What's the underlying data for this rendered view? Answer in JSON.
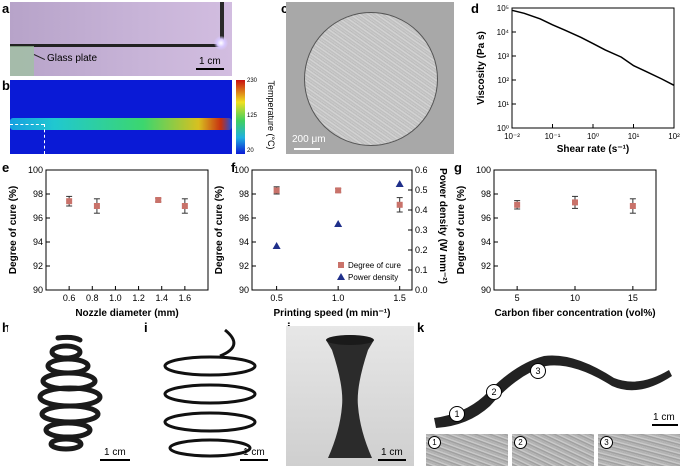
{
  "panels": {
    "a": {
      "letter": "a",
      "glass_label": "Glass plate",
      "scale": "1 cm"
    },
    "b": {
      "letter": "b",
      "cbar_label": "Temperature (°C)",
      "cbar_ticks": [
        "230",
        "125",
        "20"
      ]
    },
    "c": {
      "letter": "c",
      "scale": "200 μm"
    },
    "d": {
      "letter": "d"
    },
    "e": {
      "letter": "e"
    },
    "f": {
      "letter": "f"
    },
    "g": {
      "letter": "g"
    },
    "h": {
      "letter": "h",
      "scale": "1 cm"
    },
    "i": {
      "letter": "i",
      "scale": "1 cm"
    },
    "j": {
      "letter": "j",
      "scale": "1 cm"
    },
    "k": {
      "letter": "k",
      "scale": "1 cm",
      "markers": [
        "1",
        "2",
        "3"
      ]
    }
  },
  "chart_data": [
    {
      "id": "d",
      "type": "line",
      "xlabel": "Shear rate (s⁻¹)",
      "ylabel": "Viscosity (Pa s)",
      "xscale": "log",
      "yscale": "log",
      "xlim": [
        0.01,
        100
      ],
      "ylim": [
        1,
        100000
      ],
      "xticks": [
        0.01,
        0.1,
        1,
        10,
        100
      ],
      "xtick_labels": [
        "10⁻²",
        "10⁻¹",
        "10⁰",
        "10¹",
        "10²"
      ],
      "yticks": [
        1,
        10,
        100,
        1000,
        10000,
        100000
      ],
      "ytick_labels": [
        "10⁰",
        "10¹",
        "10²",
        "10³",
        "10⁴",
        "10⁵"
      ],
      "x": [
        0.01,
        0.02,
        0.05,
        0.1,
        0.2,
        0.5,
        1,
        2,
        5,
        10,
        20,
        50,
        100
      ],
      "y": [
        80000,
        60000,
        35000,
        20000,
        12000,
        6000,
        3300,
        1800,
        900,
        400,
        230,
        110,
        60
      ]
    },
    {
      "id": "e",
      "type": "scatter",
      "xlabel": "Nozzle diameter (mm)",
      "ylabel": "Degree of cure (%)",
      "xlim": [
        0.4,
        1.8
      ],
      "ylim": [
        90,
        100
      ],
      "xticks": [
        0.6,
        0.8,
        1.0,
        1.2,
        1.4,
        1.6
      ],
      "xtick_labels": [
        "0.6",
        "0.8",
        "1.0",
        "1.2",
        "1.4",
        "1.6"
      ],
      "yticks": [
        90,
        92,
        94,
        96,
        98,
        100
      ],
      "ytick_labels": [
        "90",
        "92",
        "94",
        "96",
        "98",
        "100"
      ],
      "x": [
        0.6,
        0.84,
        1.37,
        1.6
      ],
      "y": [
        97.4,
        97.0,
        97.5,
        97.0
      ],
      "err": [
        0.4,
        0.6,
        0.15,
        0.6
      ]
    },
    {
      "id": "f",
      "type": "scatter",
      "xlabel": "Printing speed (m min⁻¹)",
      "ylabel": "Degree of cure (%)",
      "y2label": "Power density (W mm⁻²)",
      "xlim": [
        0.3,
        1.6
      ],
      "ylim": [
        90,
        100
      ],
      "y2lim": [
        0,
        0.6
      ],
      "xticks": [
        0.5,
        1.0,
        1.5
      ],
      "xtick_labels": [
        "0.5",
        "1.0",
        "1.5"
      ],
      "yticks": [
        90,
        92,
        94,
        96,
        98,
        100
      ],
      "ytick_labels": [
        "90",
        "92",
        "94",
        "96",
        "98",
        "100"
      ],
      "y2ticks": [
        0,
        0.1,
        0.2,
        0.3,
        0.4,
        0.5,
        0.6
      ],
      "y2tick_labels": [
        "0.0",
        "0.1",
        "0.2",
        "0.3",
        "0.4",
        "0.5",
        "0.6"
      ],
      "legend": "bottom-right",
      "series": [
        {
          "name": "Degree of cure",
          "color": "#c9726a",
          "x": [
            0.5,
            1.0,
            1.5
          ],
          "y": [
            98.3,
            98.3,
            97.1
          ],
          "err": [
            0.3,
            0.15,
            0.6
          ]
        },
        {
          "name": "Power density",
          "color": "#1f2f8a",
          "axis": "y2",
          "x": [
            0.5,
            1.0,
            1.5
          ],
          "y": [
            0.22,
            0.33,
            0.53
          ]
        }
      ]
    },
    {
      "id": "g",
      "type": "scatter",
      "xlabel": "Carbon fiber concentration (vol%)",
      "ylabel": "Degree of cure (%)",
      "xlim": [
        3,
        17
      ],
      "ylim": [
        90,
        100
      ],
      "xticks": [
        5,
        10,
        15
      ],
      "xtick_labels": [
        "5",
        "10",
        "15"
      ],
      "yticks": [
        90,
        92,
        94,
        96,
        98,
        100
      ],
      "ytick_labels": [
        "90",
        "92",
        "94",
        "96",
        "98",
        "100"
      ],
      "x": [
        5,
        10,
        15
      ],
      "y": [
        97.1,
        97.3,
        97.0
      ],
      "err": [
        0.35,
        0.5,
        0.6
      ]
    }
  ]
}
